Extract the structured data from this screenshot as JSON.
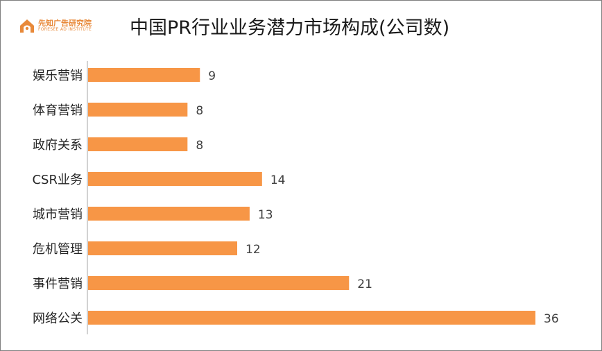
{
  "logo": {
    "brand_cn": "先知广告研究院",
    "brand_en": "FORESEE AD INSTITUTE",
    "icon": "house-logo-icon"
  },
  "chart_data": {
    "type": "bar",
    "orientation": "horizontal",
    "title": "中国PR行业业务潜力市场构成(公司数)",
    "categories": [
      "娱乐营销",
      "体育营销",
      "政府关系",
      "CSR业务",
      "城市营销",
      "危机管理",
      "事件营销",
      "网络公关"
    ],
    "values": [
      9,
      8,
      8,
      14,
      13,
      12,
      21,
      36
    ],
    "xlim": [
      0,
      36
    ],
    "grid": false,
    "legend": "none",
    "data_labels": true,
    "bar_color": "#f79646"
  }
}
